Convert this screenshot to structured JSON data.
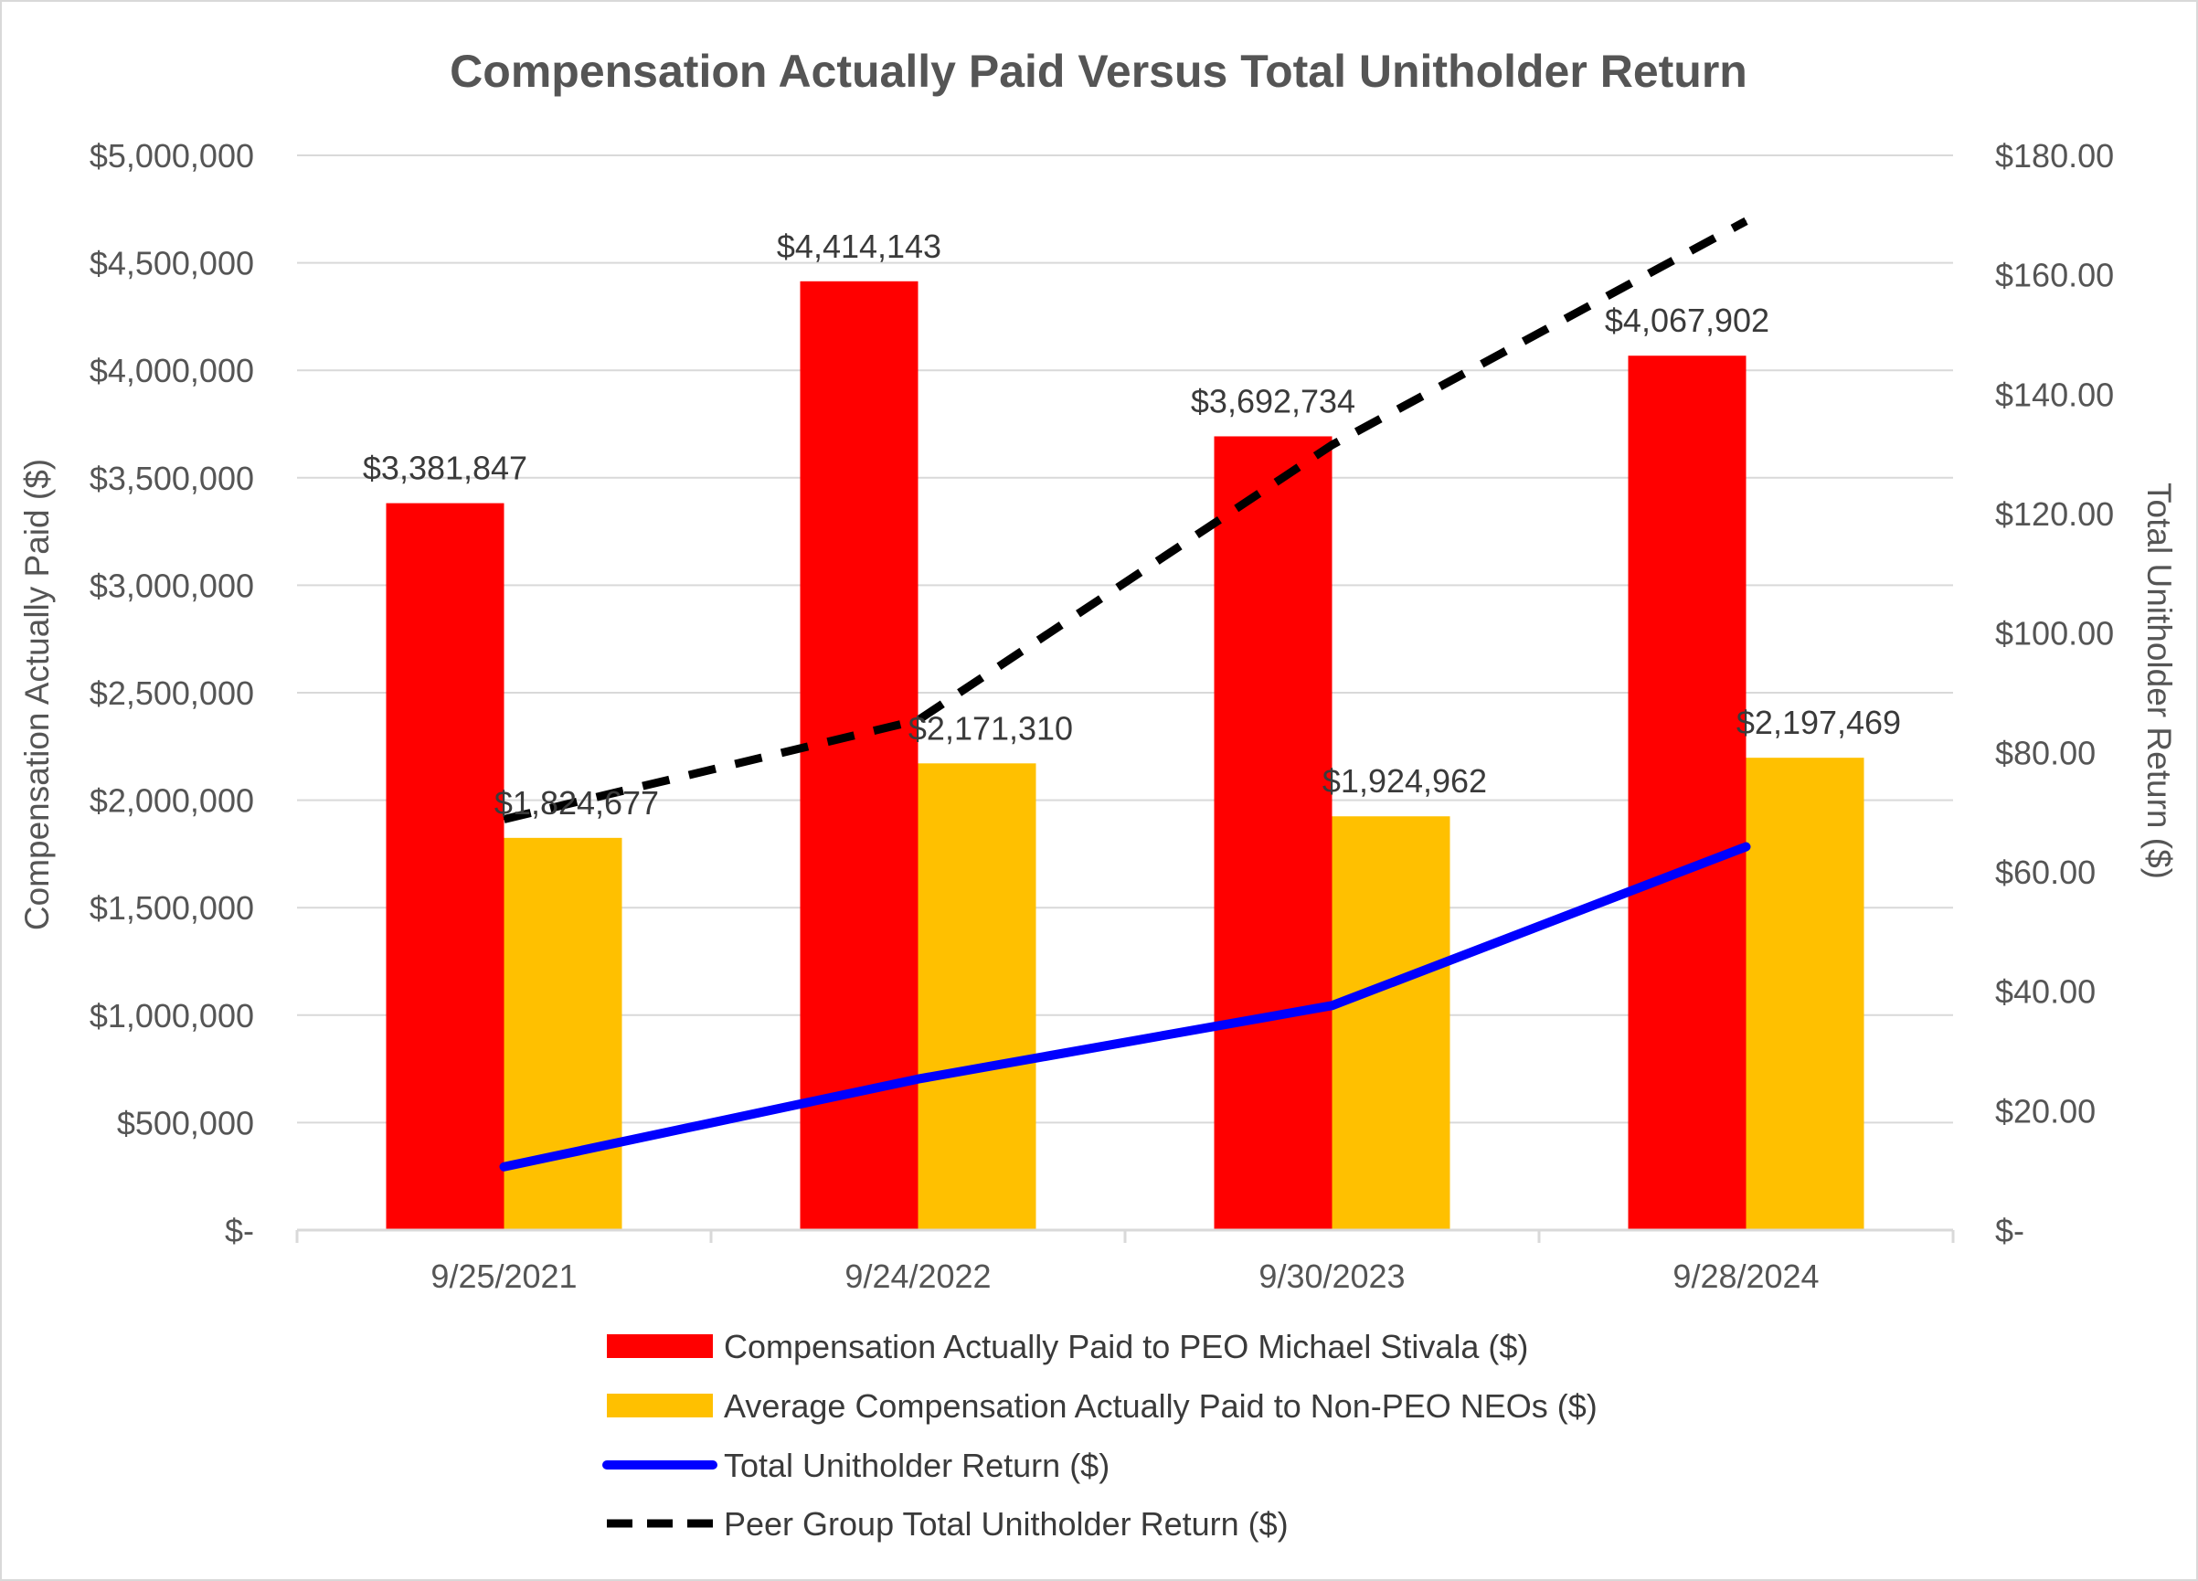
{
  "chart_data": {
    "type": "bar",
    "title": "Compensation Actually Paid Versus Total Unitholder Return",
    "categories": [
      "9/25/2021",
      "9/24/2022",
      "9/30/2023",
      "9/28/2024"
    ],
    "ylabel": "Compensation Actually Paid ($)",
    "y2label": "Total Unitholder Return ($)",
    "ylim": [
      0,
      5000000
    ],
    "y2lim": [
      0,
      180
    ],
    "y_ticks": [
      {
        "value": 0,
        "label": "$-"
      },
      {
        "value": 500000,
        "label": "$500,000"
      },
      {
        "value": 1000000,
        "label": "$1,000,000"
      },
      {
        "value": 1500000,
        "label": "$1,500,000"
      },
      {
        "value": 2000000,
        "label": "$2,000,000"
      },
      {
        "value": 2500000,
        "label": "$2,500,000"
      },
      {
        "value": 3000000,
        "label": "$3,000,000"
      },
      {
        "value": 3500000,
        "label": "$3,500,000"
      },
      {
        "value": 4000000,
        "label": "$4,000,000"
      },
      {
        "value": 4500000,
        "label": "$4,500,000"
      },
      {
        "value": 5000000,
        "label": "$5,000,000"
      }
    ],
    "y2_ticks": [
      {
        "value": 0,
        "label": "$-"
      },
      {
        "value": 20,
        "label": "$20.00"
      },
      {
        "value": 40,
        "label": "$40.00"
      },
      {
        "value": 60,
        "label": "$60.00"
      },
      {
        "value": 80,
        "label": "$80.00"
      },
      {
        "value": 100,
        "label": "$100.00"
      },
      {
        "value": 120,
        "label": "$120.00"
      },
      {
        "value": 140,
        "label": "$140.00"
      },
      {
        "value": 160,
        "label": "$160.00"
      },
      {
        "value": 180,
        "label": "$180.00"
      }
    ],
    "grid": true,
    "legend_position": "bottom",
    "series": [
      {
        "name": "Compensation Actually Paid to PEO Michael Stivala ($)",
        "kind": "bar",
        "axis": "left",
        "color": "#ff0000",
        "values": [
          3381847,
          4414143,
          3692734,
          4067902
        ],
        "labels": [
          "$3,381,847",
          "$4,414,143",
          "$3,692,734",
          "$4,067,902"
        ]
      },
      {
        "name": "Average Compensation Actually Paid to Non-PEO NEOs ($)",
        "kind": "bar",
        "axis": "left",
        "color": "#ffc000",
        "values": [
          1824677,
          2171310,
          1924962,
          2197469
        ],
        "labels": [
          "$1,824,677",
          "$2,171,310",
          "$1,924,962",
          "$2,197,469"
        ]
      },
      {
        "name": "Total Unitholder Return ($)",
        "kind": "line",
        "axis": "right",
        "color": "#0000ff",
        "style": "solid",
        "values": [
          10.6,
          25.3,
          37.6,
          64.2
        ]
      },
      {
        "name": "Peer Group Total Unitholder Return ($)",
        "kind": "line",
        "axis": "right",
        "color": "#000000",
        "style": "dashed",
        "values": [
          68.8,
          85.4,
          131.5,
          169.0
        ]
      }
    ]
  }
}
